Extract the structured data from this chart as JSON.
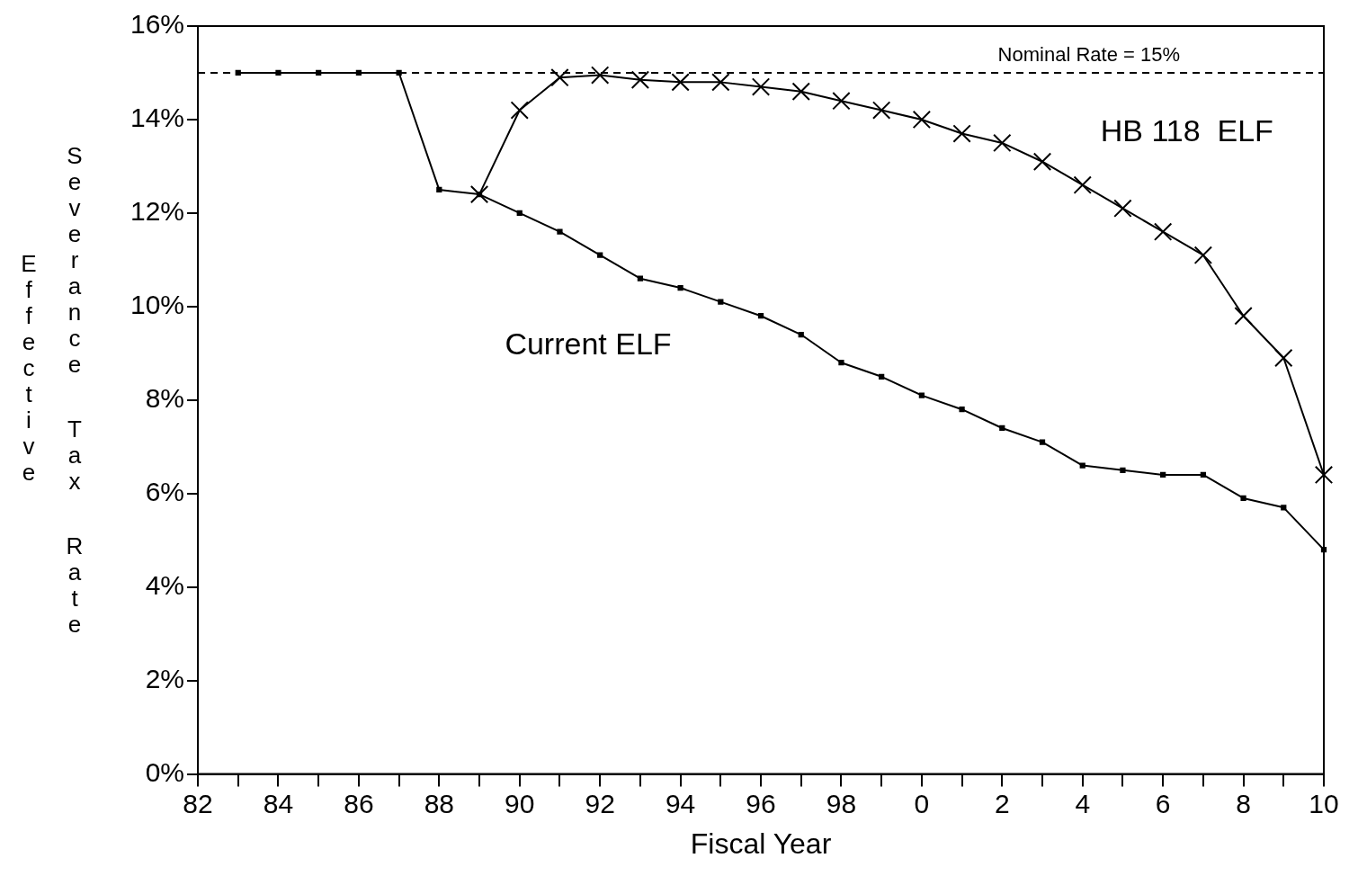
{
  "chart_data": {
    "type": "line",
    "xlabel": "Fiscal Year",
    "ylabel": "Effective Severance Tax Rate",
    "categories": [
      "82",
      null,
      "84",
      null,
      "86",
      null,
      "88",
      null,
      "90",
      null,
      "92",
      null,
      "94",
      null,
      "96",
      null,
      "98",
      null,
      "0",
      null,
      "2",
      null,
      "4",
      null,
      "6",
      null,
      "8",
      null,
      "10"
    ],
    "ylim": [
      0,
      16
    ],
    "yticks": [
      {
        "value": 0,
        "label": "0%"
      },
      {
        "value": 2,
        "label": "2%"
      },
      {
        "value": 4,
        "label": "4%"
      },
      {
        "value": 6,
        "label": "6%"
      },
      {
        "value": 8,
        "label": "8%"
      },
      {
        "value": 10,
        "label": "10%"
      },
      {
        "value": 12,
        "label": "12%"
      },
      {
        "value": 14,
        "label": "14%"
      },
      {
        "value": 16,
        "label": "16%"
      }
    ],
    "grid": false,
    "legend": false,
    "line_style": "solid",
    "series": [
      {
        "name": "Current ELF",
        "color": "#000000",
        "marker": "square",
        "values": [
          null,
          15,
          15,
          15,
          15,
          15,
          12.5,
          12.4,
          12.0,
          11.6,
          11.1,
          10.6,
          10.4,
          10.1,
          9.8,
          9.4,
          8.8,
          8.5,
          8.1,
          7.8,
          7.4,
          7.1,
          6.6,
          6.5,
          6.4,
          6.4,
          5.9,
          5.7,
          4.8
        ]
      },
      {
        "name": "HB 118  ELF",
        "color": "#000000",
        "marker": "cross",
        "values": [
          null,
          null,
          null,
          null,
          null,
          null,
          null,
          12.4,
          14.2,
          14.9,
          14.95,
          14.85,
          14.8,
          14.8,
          14.7,
          14.6,
          14.4,
          14.2,
          14.0,
          13.7,
          13.5,
          13.1,
          12.6,
          12.1,
          11.6,
          11.1,
          9.8,
          8.9,
          6.4
        ]
      }
    ],
    "ref_lines": [
      {
        "axis": "y",
        "value": 15,
        "label": "Nominal Rate = 15%",
        "color": "#000000",
        "line_style": "dashed"
      }
    ]
  }
}
